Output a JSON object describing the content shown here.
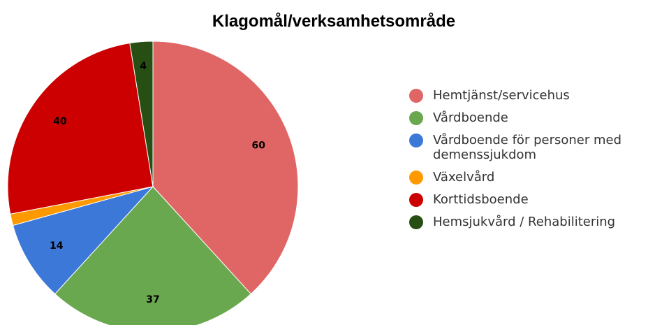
{
  "chart_data": {
    "type": "pie",
    "title": "Klagomål/verksamhetsområde",
    "categories": [
      "Hemtjänst/servicehus",
      "Vårdboende",
      "Vårdboende för personer med demenssjukdom",
      "Växelvård",
      "Korttidsboende",
      "Hemsjukvård / Rehabilitering"
    ],
    "values": [
      60,
      37,
      14,
      2,
      40,
      4
    ],
    "colors": [
      "#e06666",
      "#6aa84f",
      "#3c78d8",
      "#ff9900",
      "#cc0000",
      "#274e13"
    ],
    "legend": "right"
  }
}
